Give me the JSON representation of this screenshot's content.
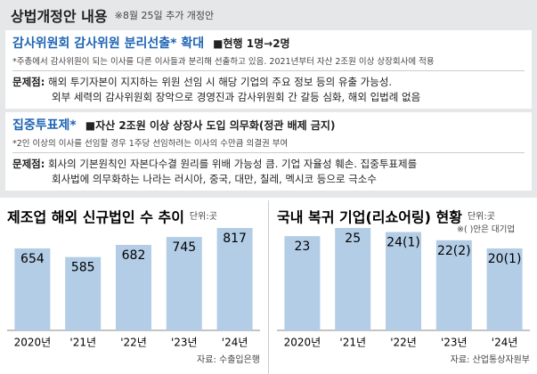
{
  "header": {
    "title": "상법개정안 내용",
    "note": "※8월 25일 추가 개정안"
  },
  "sections": [
    {
      "title": "감사위원회 감사위원 분리선출* 확대",
      "point": "■현행 1명→2명",
      "footnote": "*주총에서 감사위원이 되는 이사를 다른 이사들과 분리해 선출하고 있음. 2021년부터 자산 2조원 이상 상장회사에 적용",
      "problem_label": "문제점:",
      "problem": [
        "해외 투기자본이 지지하는 위원 선임 시 해당 기업의 주요 정보 등의 유출 가능성.",
        "외부 세력의 감사위원회 장악으로 경영진과 감사위원회 간 갈등 심화, 해외 입법례 없음"
      ]
    },
    {
      "title": "집중투표제*",
      "point": "■자산 2조원 이상 상장사 도입 의무화(정관 배제 금지)",
      "footnote": "*2인 이상의 이사를 선임할 경우 1주당 선임하려는 이사의 수만큼 의결권 부여",
      "problem_label": "문제점:",
      "problem": [
        "회사의 기본원칙인 자본다수결 원리를 위배 가능성 큼. 기업 자율성 훼손. 집중투표제를",
        "회사법에 의무화하는 나라는 러시아, 중국, 대만, 칠레, 멕시코 등으로 극소수"
      ]
    }
  ],
  "chart_data": [
    {
      "type": "bar",
      "title": "제조업 해외 신규법인 수 추이",
      "unit": "단위:곳",
      "categories": [
        "2020년",
        "'21년",
        "'22년",
        "'23년",
        "'24년"
      ],
      "values": [
        654,
        585,
        682,
        745,
        817
      ],
      "color": "#b3cde6",
      "source": "자료: 수출입은행"
    },
    {
      "type": "bar",
      "title": "국내 복귀 기업(리쇼어링) 현황",
      "unit": "단위:곳",
      "note": "※( )안은 대기업",
      "categories": [
        "2020년",
        "'21년",
        "'22년",
        "'23년",
        "'24년"
      ],
      "values": [
        23,
        25,
        24,
        22,
        20
      ],
      "value_labels": [
        "23",
        "25",
        "24(1)",
        "22(2)",
        "20(1)"
      ],
      "color": "#b3cde6",
      "source": "자료: 산업통상자원부"
    }
  ]
}
